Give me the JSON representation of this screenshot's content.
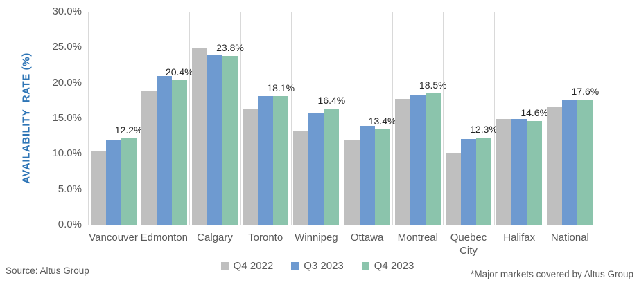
{
  "chart_data": {
    "type": "bar",
    "title": "",
    "ylabel": "AVAILABILITY  RATE (%)",
    "xlabel": "",
    "categories": [
      "Vancouver",
      "Edmonton",
      "Calgary",
      "Toronto",
      "Winnipeg",
      "Ottawa",
      "Montreal",
      "Quebec City",
      "Halifax",
      "National"
    ],
    "series": [
      {
        "name": "Q4 2022",
        "color": "#bfbfbf",
        "values": [
          10.4,
          18.9,
          24.8,
          16.4,
          13.2,
          12.0,
          17.7,
          10.1,
          14.9,
          16.6
        ]
      },
      {
        "name": "Q3 2023",
        "color": "#6e9ad0",
        "values": [
          11.9,
          20.9,
          24.0,
          18.1,
          15.7,
          13.9,
          18.2,
          12.1,
          14.9,
          17.5
        ]
      },
      {
        "name": "Q4 2023",
        "color": "#8bc4ac",
        "values": [
          12.2,
          20.4,
          23.8,
          18.1,
          16.4,
          13.4,
          18.5,
          12.3,
          14.6,
          17.6
        ],
        "data_labels": [
          "12.2%",
          "20.4%",
          "23.8%",
          "18.1%",
          "16.4%",
          "13.4%",
          "18.5%",
          "12.3%",
          "14.6%",
          "17.6%"
        ]
      }
    ],
    "y_ticks": [
      "30.0%",
      "25.0%",
      "20.0%",
      "15.0%",
      "10.0%",
      "5.0%",
      "0.0%"
    ],
    "ylim": [
      0,
      30
    ],
    "grid": "vertical-category-separators",
    "legend_position": "bottom-center"
  },
  "footer": {
    "source": "Source: Altus Group",
    "footnote": "*Major markets covered by Altus Group"
  },
  "colors": {
    "axis_title": "#2e75b6",
    "gridline": "#d9d9d9",
    "axis_line": "#bfbfbf",
    "tick_text": "#595959",
    "data_label_text": "#262626"
  }
}
